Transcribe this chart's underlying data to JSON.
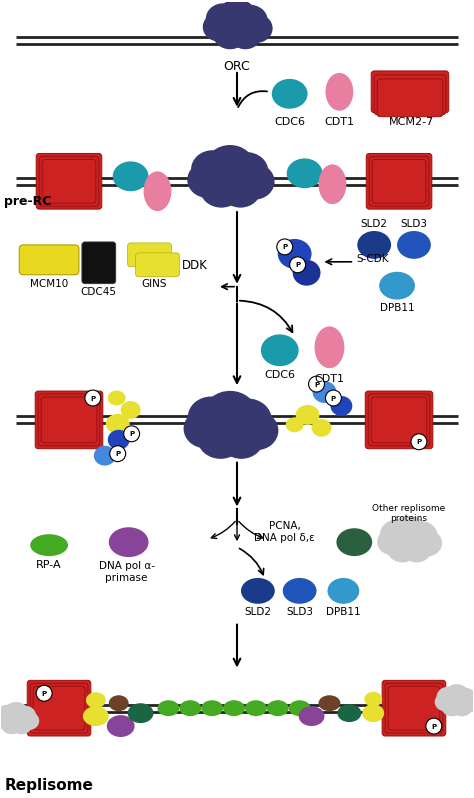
{
  "background_color": "#ffffff",
  "colors": {
    "ORC": "#383870",
    "MCM_ring": "#cc2222",
    "MCM_ring_dark": "#991111",
    "CDC6": "#1a9aaa",
    "CDT1": "#e87fa0",
    "GINS": "#e8e030",
    "MCM10": "#e8d820",
    "CDC45": "#111111",
    "DDK_blue": "#2244bb",
    "DDK_blue2": "#4488dd",
    "SLD2": "#1a3a8a",
    "SLD3": "#2255bb",
    "DPB11": "#3399cc",
    "RPA": "#44aa22",
    "DNA_pol_alpha": "#884499",
    "PCNA": "#1a6644",
    "PCNA2": "#226644",
    "other_replisome": "#cccccc",
    "brown_pcna": "#6b4226"
  },
  "labels": {
    "ORC": "ORC",
    "CDC6_top": "CDC6",
    "CDT1_top": "CDT1",
    "MCM2_7": "MCM2-7",
    "pre_RC": "pre-RC",
    "MCM10": "MCM10",
    "CDC45": "CDC45",
    "GINS": "GINS",
    "DDK": "DDK",
    "S_CDK": "S-CDK",
    "SLD2_top": "SLD2",
    "SLD3_top": "SLD3",
    "DPB11_top": "DPB11",
    "CDC6_mid": "CDC6",
    "CDT1_mid": "CDT1",
    "RPA": "RP-A",
    "DNA_pol_alpha": "DNA pol α-\nprimase",
    "PCNA": "PCNA,\nDNA pol δ,ε",
    "other_replisome": "Other replisome\nproteins",
    "SLD2_bot": "SLD2",
    "SLD3_bot": "SLD3",
    "DPB11_bot": "DPB11",
    "Replisome": "Replisome"
  }
}
